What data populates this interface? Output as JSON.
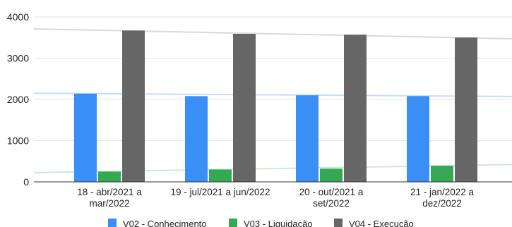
{
  "chart_data": {
    "type": "bar",
    "categories": [
      [
        "18 - abr/2021 a",
        "mar/2022"
      ],
      [
        "19 - jul/2021 a jun/2022"
      ],
      [
        "20 - out/2021 a",
        "set/2022"
      ],
      [
        "21 - jan/2022 a",
        "dez/2022"
      ]
    ],
    "series": [
      {
        "name": "V02 - Conhecimento",
        "color": "#3a8ff7",
        "values": [
          2140,
          2080,
          2100,
          2080
        ]
      },
      {
        "name": "V03 - Liquidação",
        "color": "#34a853",
        "values": [
          250,
          300,
          320,
          390
        ]
      },
      {
        "name": "V04 - Execução",
        "color": "#666666",
        "values": [
          3670,
          3590,
          3570,
          3500
        ]
      }
    ],
    "trendlines": [
      {
        "series": "V02 - Conhecimento",
        "color": "#c9dcf7",
        "start": 2150,
        "end": 2070
      },
      {
        "series": "V03 - Liquidação",
        "color": "#cfe9d2",
        "start": 225,
        "end": 420
      },
      {
        "series": "V04 - Execução",
        "color": "#d9d9d9",
        "start": 3710,
        "end": 3470
      }
    ],
    "ylim": [
      0,
      4000
    ],
    "yticks": [
      0,
      1000,
      2000,
      3000,
      4000
    ],
    "grid": true,
    "legend_position": "bottom",
    "title": "",
    "xlabel": "",
    "ylabel": ""
  }
}
